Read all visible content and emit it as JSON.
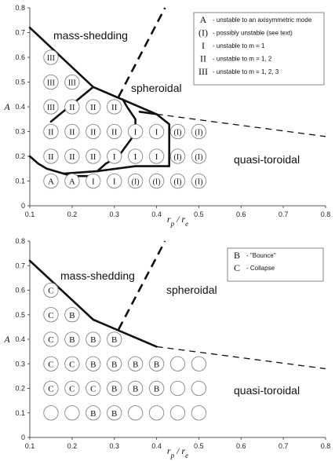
{
  "chart_data": [
    {
      "type": "scatter",
      "xlim": [
        0.1,
        0.8
      ],
      "ylim": [
        0,
        0.8
      ],
      "xticks": [
        "0.1",
        "0.2",
        "0.3",
        "0.4",
        "0.5",
        "0.6",
        "0.7",
        "0.8"
      ],
      "yticks": [
        "0",
        "0.1",
        "0.2",
        "0.3",
        "0.4",
        "0.5",
        "0.6",
        "0.7",
        "0.8"
      ],
      "xlabel": "r_p / r_e",
      "ylabel": "A",
      "regions": [
        "mass-shedding",
        "spheroidal",
        "quasi-toroidal"
      ],
      "legend": [
        {
          "symbol": "A",
          "text": "- unstable to an axisymmetric mode"
        },
        {
          "symbol": "(I)",
          "text": "- possibly unstable (see text)"
        },
        {
          "symbol": "I",
          "text": "- unstable to m = 1"
        },
        {
          "symbol": "II",
          "text": "- unstable to m = 1, 2"
        },
        {
          "symbol": "III",
          "text": "- unstable to m = 1, 2, 3"
        }
      ],
      "markers": [
        {
          "x": 0.15,
          "y": 0.6,
          "label": "III"
        },
        {
          "x": 0.15,
          "y": 0.5,
          "label": "III"
        },
        {
          "x": 0.2,
          "y": 0.5,
          "label": "III"
        },
        {
          "x": 0.15,
          "y": 0.4,
          "label": "III"
        },
        {
          "x": 0.2,
          "y": 0.4,
          "label": "II"
        },
        {
          "x": 0.25,
          "y": 0.4,
          "label": "II"
        },
        {
          "x": 0.3,
          "y": 0.4,
          "label": "II"
        },
        {
          "x": 0.15,
          "y": 0.3,
          "label": "II"
        },
        {
          "x": 0.2,
          "y": 0.3,
          "label": "II"
        },
        {
          "x": 0.25,
          "y": 0.3,
          "label": "II"
        },
        {
          "x": 0.3,
          "y": 0.3,
          "label": "II"
        },
        {
          "x": 0.35,
          "y": 0.3,
          "label": "I"
        },
        {
          "x": 0.4,
          "y": 0.3,
          "label": "I"
        },
        {
          "x": 0.45,
          "y": 0.3,
          "label": "(I)"
        },
        {
          "x": 0.5,
          "y": 0.3,
          "label": "(I)"
        },
        {
          "x": 0.15,
          "y": 0.2,
          "label": "II"
        },
        {
          "x": 0.2,
          "y": 0.2,
          "label": "II"
        },
        {
          "x": 0.25,
          "y": 0.2,
          "label": "II"
        },
        {
          "x": 0.3,
          "y": 0.2,
          "label": "I"
        },
        {
          "x": 0.35,
          "y": 0.2,
          "label": "I"
        },
        {
          "x": 0.4,
          "y": 0.2,
          "label": "I"
        },
        {
          "x": 0.45,
          "y": 0.2,
          "label": "(I)"
        },
        {
          "x": 0.5,
          "y": 0.2,
          "label": "(I)"
        },
        {
          "x": 0.15,
          "y": 0.1,
          "label": "A"
        },
        {
          "x": 0.2,
          "y": 0.1,
          "label": "A"
        },
        {
          "x": 0.25,
          "y": 0.1,
          "label": "I"
        },
        {
          "x": 0.3,
          "y": 0.1,
          "label": "I"
        },
        {
          "x": 0.35,
          "y": 0.1,
          "label": "(I)"
        },
        {
          "x": 0.4,
          "y": 0.1,
          "label": "(I)"
        },
        {
          "x": 0.45,
          "y": 0.1,
          "label": "(I)"
        },
        {
          "x": 0.5,
          "y": 0.1,
          "label": "(I)"
        }
      ],
      "solid_lines": [
        [
          [
            0.1,
            0.72
          ],
          [
            0.25,
            0.48
          ],
          [
            0.4,
            0.37
          ]
        ],
        [
          [
            0.15,
            0.34
          ],
          [
            0.25,
            0.48
          ]
        ],
        [
          [
            0.1,
            0.2
          ],
          [
            0.12,
            0.17
          ],
          [
            0.14,
            0.15
          ],
          [
            0.2,
            0.12
          ],
          [
            0.25,
            0.12
          ]
        ],
        [
          [
            0.18,
            0.13
          ],
          [
            0.26,
            0.14
          ],
          [
            0.35,
            0.16
          ],
          [
            0.43,
            0.16
          ],
          [
            0.43,
            0.33
          ],
          [
            0.4,
            0.37
          ],
          [
            0.36,
            0.38
          ]
        ],
        [
          [
            0.26,
            0.14
          ],
          [
            0.28,
            0.17
          ],
          [
            0.31,
            0.2
          ],
          [
            0.34,
            0.27
          ],
          [
            0.35,
            0.31
          ],
          [
            0.35,
            0.35
          ],
          [
            0.33,
            0.4
          ],
          [
            0.32,
            0.43
          ]
        ]
      ],
      "dashed_lines": [
        [
          [
            0.31,
            0.44
          ],
          [
            0.42,
            0.8
          ]
        ],
        [
          [
            0.4,
            0.37
          ],
          [
            0.8,
            0.28
          ]
        ]
      ]
    },
    {
      "type": "scatter",
      "xlim": [
        0.1,
        0.8
      ],
      "ylim": [
        0,
        0.8
      ],
      "xticks": [
        "0.1",
        "0.2",
        "0.3",
        "0.4",
        "0.5",
        "0.6",
        "0.7",
        "0.8"
      ],
      "yticks": [
        "0",
        "0.1",
        "0.2",
        "0.3",
        "0.4",
        "0.5",
        "0.6",
        "0.7",
        "0.8"
      ],
      "xlabel": "r_p / r_e",
      "ylabel": "A",
      "regions": [
        "mass-shedding",
        "spheroidal",
        "quasi-toroidal"
      ],
      "legend": [
        {
          "symbol": "B",
          "text": "- \"Bounce\""
        },
        {
          "symbol": "C",
          "text": "- Collapse"
        }
      ],
      "markers": [
        {
          "x": 0.15,
          "y": 0.6,
          "label": "C"
        },
        {
          "x": 0.15,
          "y": 0.5,
          "label": "C"
        },
        {
          "x": 0.2,
          "y": 0.5,
          "label": "B"
        },
        {
          "x": 0.15,
          "y": 0.4,
          "label": "C"
        },
        {
          "x": 0.2,
          "y": 0.4,
          "label": "B"
        },
        {
          "x": 0.25,
          "y": 0.4,
          "label": "B"
        },
        {
          "x": 0.3,
          "y": 0.4,
          "label": "B"
        },
        {
          "x": 0.15,
          "y": 0.3,
          "label": "C"
        },
        {
          "x": 0.2,
          "y": 0.3,
          "label": "C"
        },
        {
          "x": 0.25,
          "y": 0.3,
          "label": "B"
        },
        {
          "x": 0.3,
          "y": 0.3,
          "label": "B"
        },
        {
          "x": 0.35,
          "y": 0.3,
          "label": "B"
        },
        {
          "x": 0.4,
          "y": 0.3,
          "label": "B"
        },
        {
          "x": 0.45,
          "y": 0.3,
          "label": ""
        },
        {
          "x": 0.5,
          "y": 0.3,
          "label": ""
        },
        {
          "x": 0.15,
          "y": 0.2,
          "label": "C"
        },
        {
          "x": 0.2,
          "y": 0.2,
          "label": "C"
        },
        {
          "x": 0.25,
          "y": 0.2,
          "label": "C"
        },
        {
          "x": 0.3,
          "y": 0.2,
          "label": "B"
        },
        {
          "x": 0.35,
          "y": 0.2,
          "label": "B"
        },
        {
          "x": 0.4,
          "y": 0.2,
          "label": "B"
        },
        {
          "x": 0.45,
          "y": 0.2,
          "label": ""
        },
        {
          "x": 0.5,
          "y": 0.2,
          "label": ""
        },
        {
          "x": 0.15,
          "y": 0.1,
          "label": ""
        },
        {
          "x": 0.2,
          "y": 0.1,
          "label": ""
        },
        {
          "x": 0.25,
          "y": 0.1,
          "label": "B"
        },
        {
          "x": 0.3,
          "y": 0.1,
          "label": "B"
        },
        {
          "x": 0.35,
          "y": 0.1,
          "label": ""
        },
        {
          "x": 0.4,
          "y": 0.1,
          "label": ""
        },
        {
          "x": 0.45,
          "y": 0.1,
          "label": ""
        },
        {
          "x": 0.5,
          "y": 0.1,
          "label": ""
        }
      ],
      "solid_lines": [
        [
          [
            0.1,
            0.72
          ],
          [
            0.25,
            0.48
          ],
          [
            0.4,
            0.37
          ]
        ]
      ],
      "dashed_lines": [
        [
          [
            0.31,
            0.44
          ],
          [
            0.42,
            0.8
          ]
        ],
        [
          [
            0.4,
            0.37
          ],
          [
            0.8,
            0.28
          ]
        ]
      ]
    }
  ]
}
